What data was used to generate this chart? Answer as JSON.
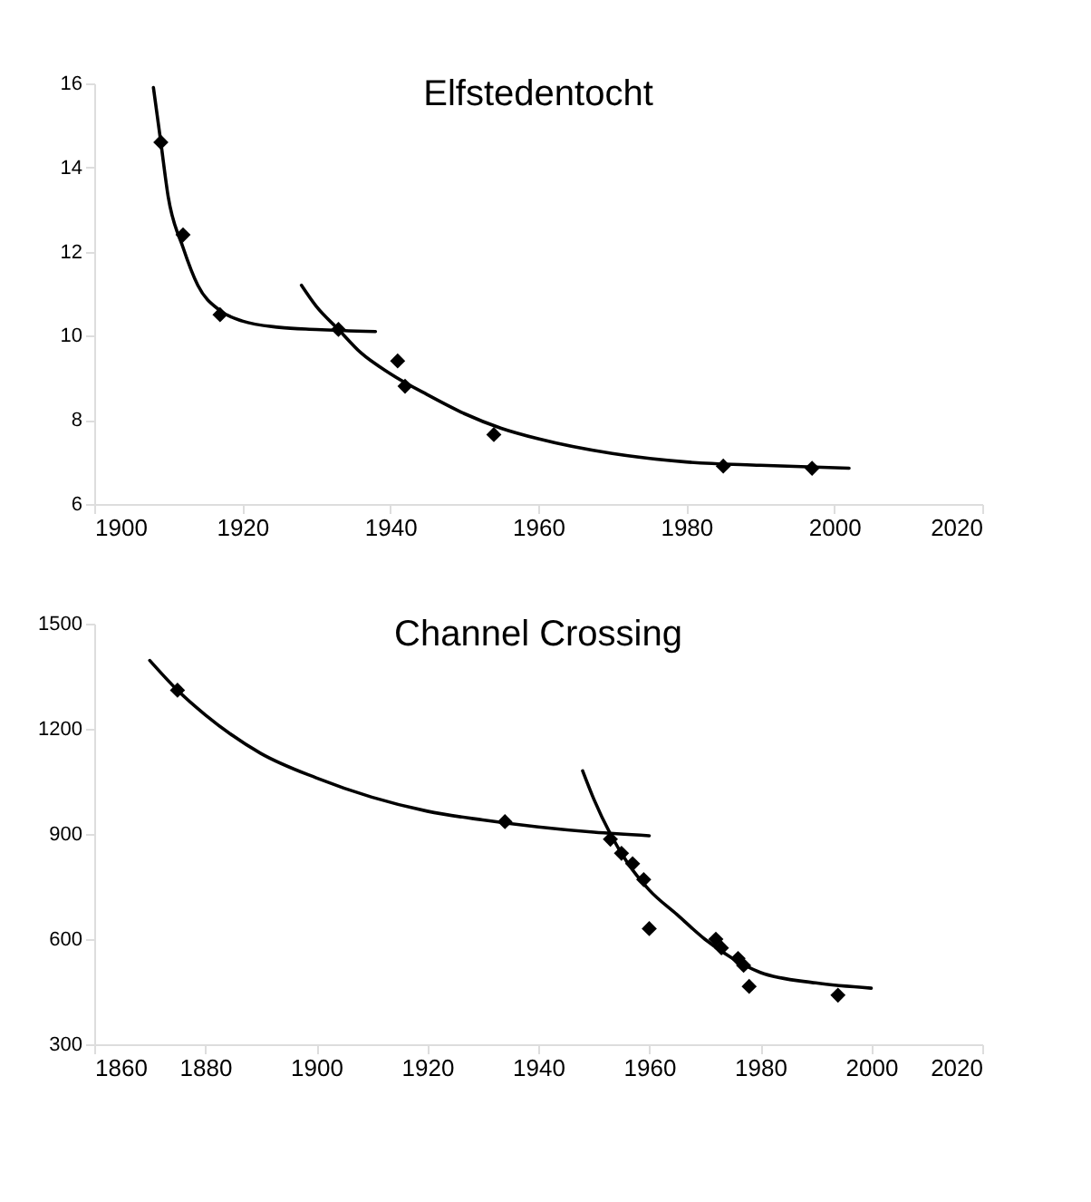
{
  "chart_data": [
    {
      "type": "scatter",
      "title": "Elfstedentocht",
      "xlim": [
        1900,
        2020
      ],
      "xticks": [
        1900,
        1920,
        1940,
        1960,
        1980,
        2000,
        2020
      ],
      "ylim": [
        6,
        16
      ],
      "yticks": [
        6,
        8,
        10,
        12,
        14,
        16
      ],
      "series": [
        {
          "marker": "diamond",
          "color": "#000000",
          "x": [
            1909,
            1912,
            1917,
            1933,
            1941,
            1942,
            1954,
            1985,
            1997
          ],
          "values": [
            14.6,
            12.4,
            10.5,
            10.15,
            9.4,
            8.8,
            7.65,
            6.9,
            6.85
          ]
        },
        {
          "type": "line",
          "marker": "none",
          "color": "#000000",
          "x": [
            1908,
            1909,
            1910,
            1912,
            1914,
            1917,
            1920,
            1925,
            1930,
            1938
          ],
          "values": [
            15.9,
            14.6,
            13.3,
            12.1,
            11.2,
            10.6,
            10.35,
            10.2,
            10.15,
            10.1
          ]
        },
        {
          "type": "line",
          "marker": "none",
          "color": "#000000",
          "x": [
            1928,
            1930,
            1933,
            1936,
            1940,
            1945,
            1950,
            1955,
            1960,
            1970,
            1980,
            1990,
            2002
          ],
          "values": [
            11.2,
            10.7,
            10.15,
            9.6,
            9.1,
            8.6,
            8.15,
            7.8,
            7.55,
            7.2,
            7.0,
            6.92,
            6.85
          ]
        }
      ]
    },
    {
      "type": "scatter",
      "title": "Channel Crossing",
      "xlim": [
        1860,
        2020
      ],
      "xticks": [
        1860,
        1880,
        1900,
        1920,
        1940,
        1960,
        1980,
        2000,
        2020
      ],
      "ylim": [
        300,
        1500
      ],
      "yticks": [
        300,
        600,
        900,
        1200,
        1500
      ],
      "series": [
        {
          "marker": "diamond",
          "color": "#000000",
          "x": [
            1875,
            1934,
            1953,
            1955,
            1957,
            1959,
            1960,
            1972,
            1973,
            1976,
            1977,
            1978,
            1994
          ],
          "values": [
            1310,
            935,
            885,
            845,
            815,
            770,
            630,
            600,
            575,
            545,
            525,
            465,
            440
          ]
        },
        {
          "type": "line",
          "marker": "none",
          "color": "#000000",
          "x": [
            1870,
            1875,
            1880,
            1890,
            1900,
            1910,
            1920,
            1930,
            1940,
            1950,
            1960
          ],
          "values": [
            1395,
            1310,
            1240,
            1130,
            1060,
            1005,
            965,
            940,
            920,
            905,
            895
          ]
        },
        {
          "type": "line",
          "marker": "none",
          "color": "#000000",
          "x": [
            1948,
            1950,
            1953,
            1956,
            1960,
            1965,
            1970,
            1975,
            1980,
            1990,
            2000
          ],
          "values": [
            1080,
            1000,
            900,
            820,
            740,
            670,
            600,
            545,
            505,
            475,
            460
          ]
        }
      ]
    }
  ]
}
